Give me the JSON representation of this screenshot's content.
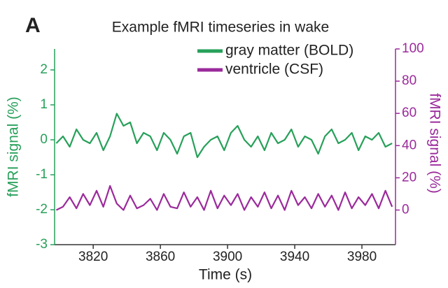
{
  "panel_label": "A",
  "chart_data": {
    "type": "line",
    "title": "Example fMRI timeseries in wake",
    "xlabel": "Time (s)",
    "ylabel": "fMRI signal (%)",
    "y2label": "fMRI signal (%)",
    "x": [
      3798,
      3802,
      3806,
      3810,
      3814,
      3818,
      3822,
      3826,
      3830,
      3834,
      3838,
      3842,
      3846,
      3850,
      3854,
      3858,
      3862,
      3866,
      3870,
      3874,
      3878,
      3882,
      3886,
      3890,
      3894,
      3898,
      3902,
      3906,
      3910,
      3914,
      3918,
      3922,
      3926,
      3930,
      3934,
      3938,
      3942,
      3946,
      3950,
      3954,
      3958,
      3962,
      3966,
      3970,
      3974,
      3978,
      3982,
      3986,
      3990,
      3994,
      3998
    ],
    "series": [
      {
        "name": "gray matter (BOLD)",
        "color": "#27a05a",
        "axis": "y",
        "values": [
          -0.1,
          0.1,
          -0.2,
          0.3,
          0.0,
          -0.1,
          0.2,
          -0.3,
          0.1,
          0.75,
          0.4,
          0.5,
          -0.1,
          0.2,
          0.1,
          -0.3,
          0.2,
          0.0,
          -0.4,
          0.1,
          0.2,
          -0.5,
          -0.2,
          0.0,
          0.1,
          -0.3,
          0.2,
          0.4,
          0.0,
          -0.2,
          0.1,
          -0.3,
          0.2,
          -0.1,
          0.0,
          0.3,
          -0.2,
          0.1,
          0.0,
          -0.4,
          0.1,
          0.3,
          -0.1,
          0.0,
          0.2,
          -0.3,
          0.1,
          0.0,
          0.2,
          -0.2,
          -0.1
        ]
      },
      {
        "name": "ventricle (CSF)",
        "color": "#9b2a9b",
        "axis": "y2",
        "values": [
          0,
          2,
          8,
          1,
          10,
          3,
          12,
          2,
          15,
          4,
          0,
          9,
          1,
          3,
          7,
          0,
          10,
          2,
          1,
          11,
          2,
          8,
          0,
          12,
          1,
          9,
          3,
          10,
          0,
          8,
          2,
          11,
          1,
          9,
          0,
          12,
          3,
          8,
          1,
          10,
          2,
          9,
          0,
          11,
          1,
          8,
          3,
          10,
          1,
          12,
          2
        ]
      }
    ],
    "xlim": [
      3797,
      4000
    ],
    "xticks": [
      3820,
      3860,
      3900,
      3940,
      3980
    ],
    "ylim": [
      -3,
      2.6
    ],
    "yticks": [
      -3,
      -2,
      -1,
      0,
      1,
      2
    ],
    "y2lim": [
      -21.5,
      100
    ],
    "y2ticks": [
      0,
      20,
      40,
      60,
      80,
      100
    ],
    "legend": "upper right"
  }
}
